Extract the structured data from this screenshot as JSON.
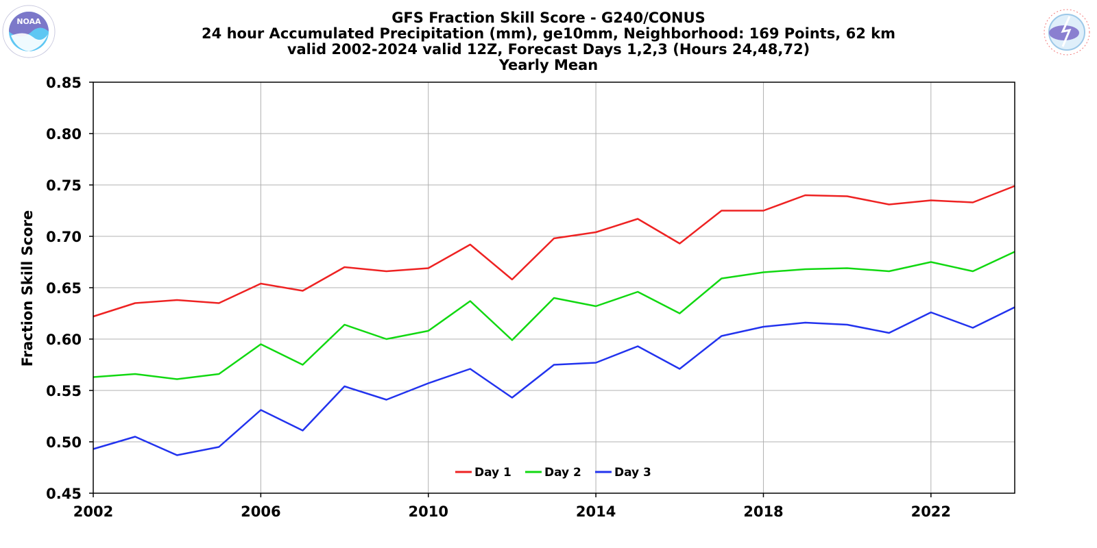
{
  "logos": {
    "left": {
      "name": "NOAA",
      "text": "NOAA",
      "ring_text": "NATIONAL OCEANIC AND ATMOSPHERIC ADMINISTRATION · U.S. DEPARTMENT OF COMMERCE"
    },
    "right": {
      "name": "National Weather Service",
      "ring_text": "NATIONAL WEATHER SERVICE"
    }
  },
  "chart_data": {
    "type": "line",
    "title": [
      "GFS Fraction Skill Score - G240/CONUS",
      "24 hour Accumulated Precipitation (mm), ge10mm, Neighborhood: 169 Points, 62 km",
      "valid 2002-2024 valid 12Z, Forecast Days 1,2,3 (Hours 24,48,72)",
      "Yearly Mean"
    ],
    "xlabel": "",
    "ylabel": "Fraction Skill Score",
    "x": [
      2002,
      2003,
      2004,
      2005,
      2006,
      2007,
      2008,
      2009,
      2010,
      2011,
      2012,
      2013,
      2014,
      2015,
      2016,
      2017,
      2018,
      2019,
      2020,
      2021,
      2022,
      2023,
      2024
    ],
    "xlim": [
      2002,
      2024
    ],
    "ylim": [
      0.45,
      0.85
    ],
    "xticks": [
      2002,
      2006,
      2010,
      2014,
      2018,
      2022
    ],
    "yticks": [
      0.45,
      0.5,
      0.55,
      0.6,
      0.65,
      0.7,
      0.75,
      0.8,
      0.85
    ],
    "grid": true,
    "legend_position": "bottom-center",
    "series": [
      {
        "name": "Day 1",
        "color": "#ee2222",
        "values": [
          0.622,
          0.635,
          0.638,
          0.635,
          0.654,
          0.647,
          0.67,
          0.666,
          0.669,
          0.692,
          0.658,
          0.698,
          0.704,
          0.717,
          0.693,
          0.725,
          0.725,
          0.74,
          0.739,
          0.731,
          0.735,
          0.733,
          0.749
        ]
      },
      {
        "name": "Day 2",
        "color": "#11d811",
        "values": [
          0.563,
          0.566,
          0.561,
          0.566,
          0.595,
          0.575,
          0.614,
          0.6,
          0.608,
          0.637,
          0.599,
          0.64,
          0.632,
          0.646,
          0.625,
          0.659,
          0.665,
          0.668,
          0.669,
          0.666,
          0.675,
          0.666,
          0.685
        ]
      },
      {
        "name": "Day 3",
        "color": "#2233ee",
        "values": [
          0.493,
          0.505,
          0.487,
          0.495,
          0.531,
          0.511,
          0.554,
          0.541,
          0.557,
          0.571,
          0.543,
          0.575,
          0.577,
          0.593,
          0.571,
          0.603,
          0.612,
          0.616,
          0.614,
          0.606,
          0.626,
          0.611,
          0.631
        ]
      }
    ]
  }
}
